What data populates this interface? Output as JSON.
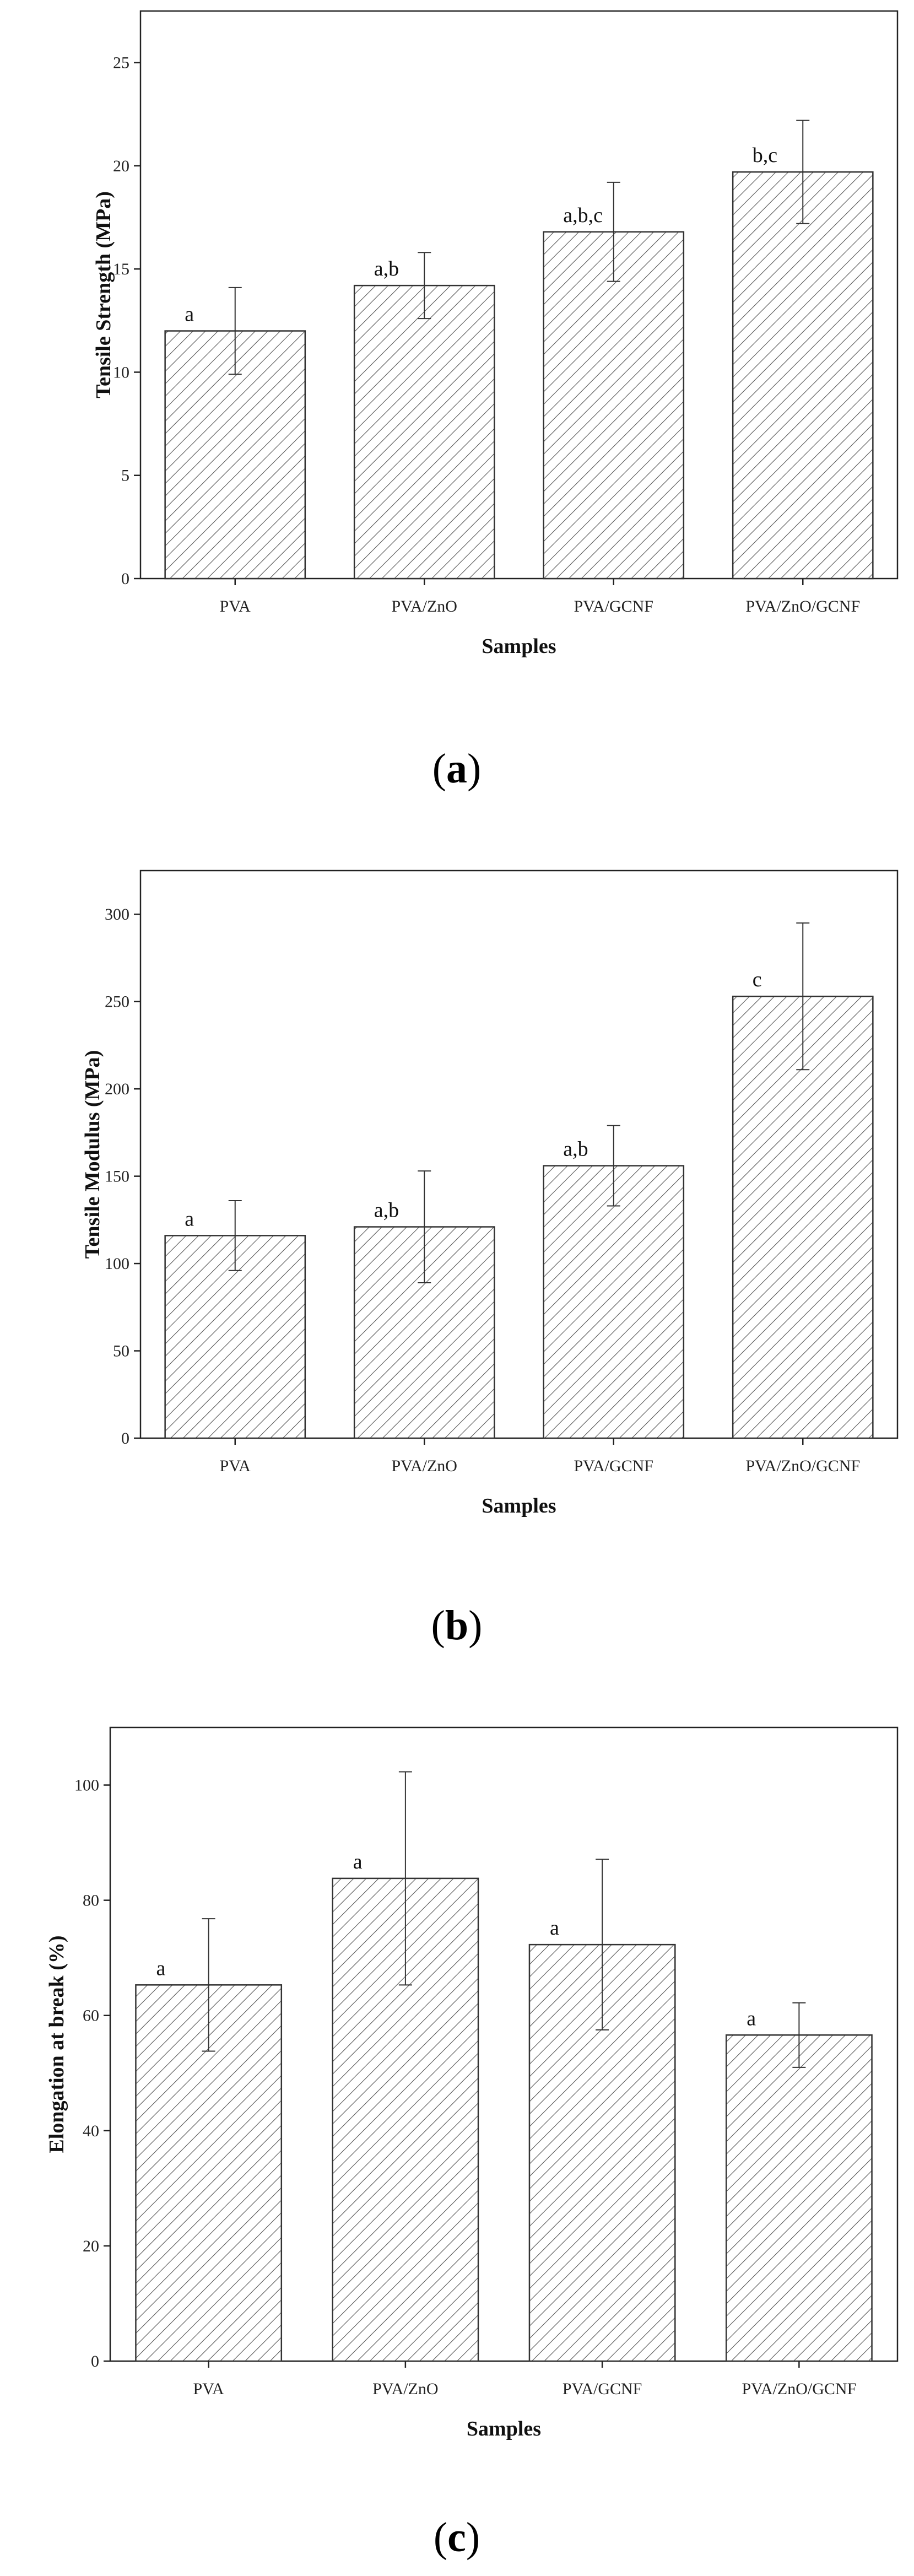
{
  "chart_data": [
    {
      "type": "bar",
      "panel_label": "a",
      "categories": [
        "PVA",
        "PVA/ZnO",
        "PVA/GCNF",
        "PVA/ZnO/GCNF"
      ],
      "values": [
        12.0,
        14.2,
        16.8,
        19.7
      ],
      "errors": [
        2.1,
        1.6,
        2.4,
        2.5
      ],
      "significance": [
        "a",
        "a,b",
        "a,b,c",
        "b,c"
      ],
      "xlabel": "Samples",
      "ylabel": "Tensile Strength (MPa)",
      "ylim": [
        0,
        27.5
      ],
      "yticks": [
        0,
        5,
        10,
        15,
        20,
        25
      ],
      "grid": false,
      "pattern": "diagonal-hatch"
    },
    {
      "type": "bar",
      "panel_label": "b",
      "categories": [
        "PVA",
        "PVA/ZnO",
        "PVA/GCNF",
        "PVA/ZnO/GCNF"
      ],
      "values": [
        116,
        121,
        156,
        253
      ],
      "errors": [
        20,
        32,
        23,
        42
      ],
      "significance": [
        "a",
        "a,b",
        "a,b",
        "c"
      ],
      "xlabel": "Samples",
      "ylabel": "Tensile Modulus (MPa)",
      "ylim": [
        0,
        325
      ],
      "yticks": [
        0,
        50,
        100,
        150,
        200,
        250,
        300
      ],
      "grid": false,
      "pattern": "diagonal-hatch"
    },
    {
      "type": "bar",
      "panel_label": "c",
      "categories": [
        "PVA",
        "PVA/ZnO",
        "PVA/GCNF",
        "PVA/ZnO/GCNF"
      ],
      "values": [
        65.3,
        83.8,
        72.3,
        56.6
      ],
      "errors": [
        11.5,
        18.5,
        14.8,
        5.6
      ],
      "significance": [
        "a",
        "a",
        "a",
        "a"
      ],
      "xlabel": "Samples",
      "ylabel": "Elongation at break (%)",
      "ylim": [
        0,
        110
      ],
      "yticks": [
        0,
        20,
        40,
        60,
        80,
        100
      ],
      "grid": false,
      "pattern": "diagonal-hatch"
    }
  ]
}
